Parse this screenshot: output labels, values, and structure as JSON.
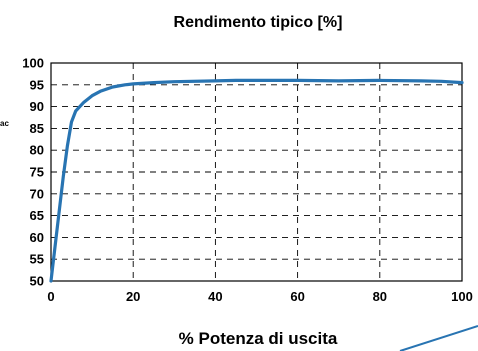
{
  "chart_data": {
    "type": "line",
    "title": "Rendimento tipico  [%]",
    "xlabel": "% Potenza di uscita",
    "ylabel": "",
    "side_label": "ac",
    "xlim": [
      0,
      100
    ],
    "ylim": [
      50,
      100
    ],
    "x_ticks": [
      0,
      20,
      40,
      60,
      80,
      100
    ],
    "y_ticks": [
      50,
      55,
      60,
      65,
      70,
      75,
      80,
      85,
      90,
      95,
      100
    ],
    "grid": true,
    "grid_style": "dashed",
    "legend": "none",
    "series": [
      {
        "color": "#2874b2",
        "x": [
          0,
          1,
          2,
          3,
          4,
          5,
          6,
          8,
          10,
          12,
          15,
          18,
          20,
          25,
          30,
          40,
          45,
          50,
          60,
          70,
          80,
          90,
          95,
          100
        ],
        "y": [
          50,
          58,
          66,
          74,
          81,
          86.5,
          89,
          91,
          92.5,
          93.5,
          94.5,
          95,
          95.2,
          95.5,
          95.7,
          95.9,
          96,
          96,
          96,
          95.9,
          96,
          95.9,
          95.8,
          95.5
        ]
      }
    ],
    "decoration_color": "#2874b2"
  }
}
